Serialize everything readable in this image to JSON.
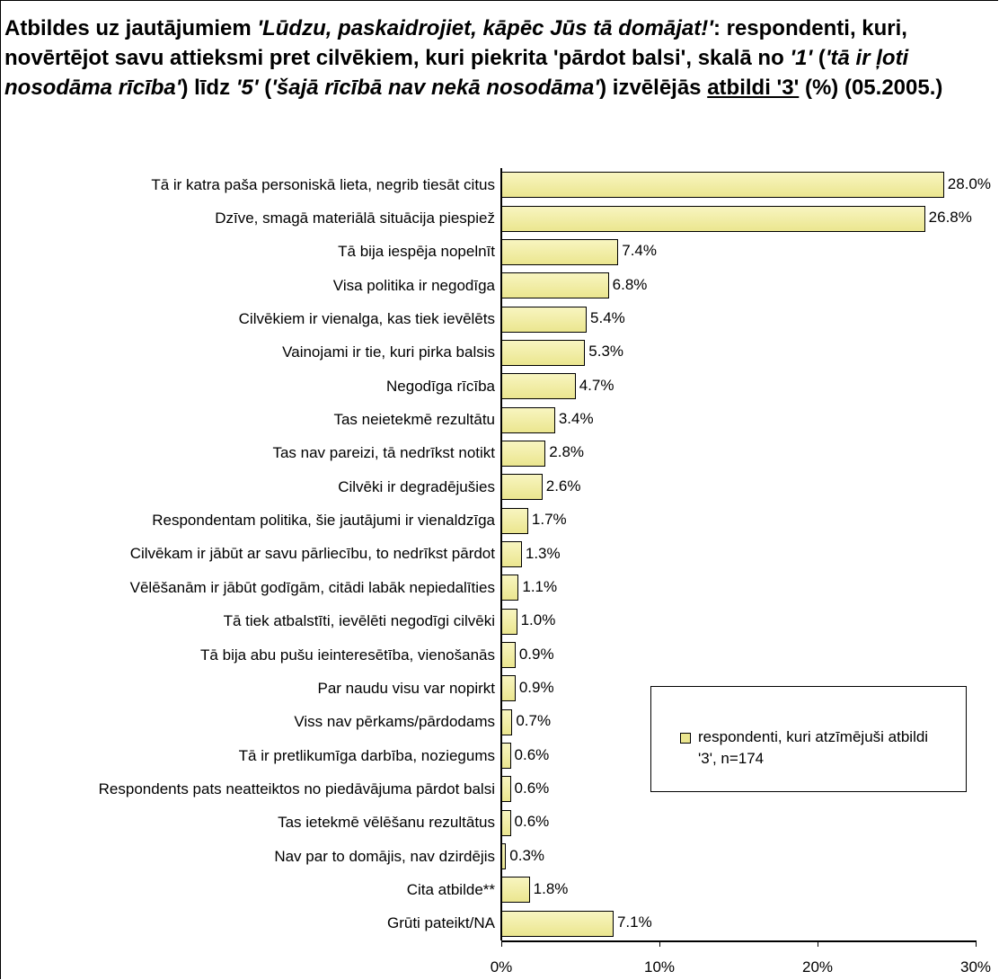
{
  "chart_data": {
    "type": "hbar",
    "title": [
      "Atbildes uz jautājumiem ",
      "'Lūdzu, paskaidrojiet, kāpēc Jūs tā domājat!'",
      ": respondenti, kuri, novērtējot savu attieksmi pret cilvēkiem, kuri piekrita 'pārdot balsi', skalā no ",
      "'1'",
      " (",
      "'tā ir ļoti nosodāma rīcība'",
      ") līdz ",
      "'5'",
      " (",
      "'šajā rīcībā nav nekā nosodāma'",
      ") izvēlējās ",
      "atbildi '3'",
      " (%) (05.2005.)"
    ],
    "categories": [
      "Tā ir katra paša personiskā lieta, negrib tiesāt citus",
      "Dzīve, smagā materiālā situācija piespiež",
      "Tā bija iespēja nopelnīt",
      "Visa politika ir negodīga",
      "Cilvēkiem ir vienalga, kas tiek ievēlēts",
      "Vainojami ir tie, kuri pirka balsis",
      "Negodīga rīcība",
      "Tas neietekmē rezultātu",
      "Tas nav pareizi, tā nedrīkst notikt",
      "Cilvēki ir  degradējušies",
      "Respondentam politika, šie jautājumi ir vienaldzīga",
      "Cilvēkam ir jābūt ar savu pārliecību, to nedrīkst pārdot",
      "Vēlēšanām ir jābūt godīgām, citādi labāk nepiedalīties",
      "Tā tiek atbalstīti, ievēlēti negodīgi cilvēki",
      "Tā bija abu pušu ieinteresētība, vienošanās",
      "Par naudu visu var nopirkt",
      "Viss nav pērkams/pārdodams",
      "Tā ir pretlikumīga darbība, noziegums",
      "Respondents pats neatteiktos no piedāvājuma pārdot balsi",
      "Tas ietekmē vēlēšanu rezultātus",
      "Nav par to domājis, nav dzirdējis",
      "Cita atbilde**",
      "Grūti pateikt/NA"
    ],
    "series": [
      {
        "name": "respondenti, kuri atzīmējuši atbildi '3', n=174",
        "color": "#ebe68f",
        "values": [
          28.0,
          26.8,
          7.4,
          6.8,
          5.4,
          5.3,
          4.7,
          3.4,
          2.8,
          2.6,
          1.7,
          1.3,
          1.1,
          1.0,
          0.9,
          0.9,
          0.7,
          0.6,
          0.6,
          0.6,
          0.3,
          1.8,
          7.1
        ],
        "value_labels": [
          "28.0%",
          "26.8%",
          "7.4%",
          "6.8%",
          "5.4%",
          "5.3%",
          "4.7%",
          "3.4%",
          "2.8%",
          "2.6%",
          "1.7%",
          "1.3%",
          "1.1%",
          "1.0%",
          "0.9%",
          "0.9%",
          "0.7%",
          "0.6%",
          "0.6%",
          "0.6%",
          "0.3%",
          "1.8%",
          "7.1%"
        ]
      }
    ],
    "xlim": [
      0,
      30
    ],
    "xticks": [
      {
        "value": 0,
        "label": "0%"
      },
      {
        "value": 10,
        "label": "10%"
      },
      {
        "value": 20,
        "label": "20%"
      },
      {
        "value": 30,
        "label": "30%"
      }
    ],
    "legend": "lower-right"
  }
}
